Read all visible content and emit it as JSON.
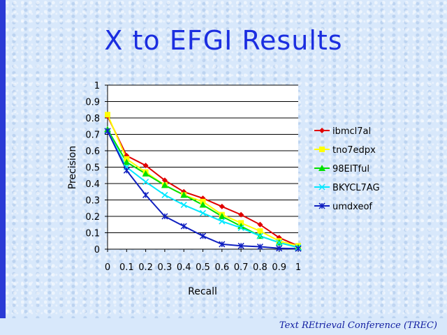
{
  "slide": {
    "title": "X to EFGI Results",
    "footer": "Text REtrieval Conference (TREC)"
  },
  "chart_data": {
    "type": "line",
    "title": "",
    "xlabel": "Recall",
    "ylabel": "Precision",
    "x": [
      0,
      0.1,
      0.2,
      0.3,
      0.4,
      0.5,
      0.6,
      0.7,
      0.8,
      0.9,
      1
    ],
    "x_tick_labels": [
      "0",
      "0.1",
      "0.2",
      "0.3",
      "0.4",
      "0.5",
      "0.6",
      "0.7",
      "0.8",
      "0.9",
      "1"
    ],
    "y_tick_labels": [
      "0",
      "0.1",
      "0.2",
      "0.3",
      "0.4",
      "0.5",
      "0.6",
      "0.7",
      "0.8",
      "0.9",
      "1"
    ],
    "xlim": [
      0,
      1
    ],
    "ylim": [
      0,
      1
    ],
    "grid": "horizontal",
    "legend": "right",
    "series": [
      {
        "name": "ibmcl7al",
        "color": "#e00000",
        "marker": "diamond",
        "values": [
          0.81,
          0.57,
          0.51,
          0.42,
          0.35,
          0.31,
          0.26,
          0.21,
          0.15,
          0.07,
          0.02
        ]
      },
      {
        "name": "tno7edpx",
        "color": "#ffff00",
        "marker": "square",
        "values": [
          0.82,
          0.55,
          0.47,
          0.39,
          0.33,
          0.29,
          0.21,
          0.16,
          0.11,
          0.05,
          0.02
        ]
      },
      {
        "name": "98EITful",
        "color": "#00e000",
        "marker": "triangle",
        "values": [
          0.73,
          0.53,
          0.46,
          0.39,
          0.33,
          0.27,
          0.2,
          0.14,
          0.08,
          0.04,
          0.01
        ]
      },
      {
        "name": "BKYCL7AG",
        "color": "#00e8ff",
        "marker": "x",
        "values": [
          0.72,
          0.5,
          0.41,
          0.33,
          0.27,
          0.22,
          0.17,
          0.13,
          0.08,
          0.04,
          0.01
        ]
      },
      {
        "name": "umdxeof",
        "color": "#1020c0",
        "marker": "star",
        "values": [
          0.72,
          0.48,
          0.33,
          0.2,
          0.14,
          0.08,
          0.03,
          0.02,
          0.015,
          0.005,
          0.003
        ]
      }
    ]
  }
}
